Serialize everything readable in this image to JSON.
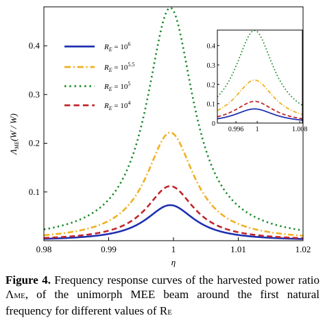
{
  "chart_data": {
    "type": "line",
    "xlabel": "η",
    "ylabel": "Λ_ME (W / W)",
    "xlim": [
      0.98,
      1.02
    ],
    "ylim": [
      0,
      0.48
    ],
    "x_ticks": [
      0.98,
      0.99,
      1,
      1.01,
      1.02
    ],
    "x_tick_labels": [
      "0.98",
      "0.99",
      "1",
      "1.01",
      "1.02"
    ],
    "y_ticks": [
      0.1,
      0.2,
      0.3,
      0.4
    ],
    "y_tick_labels": [
      "0.1",
      "0.2",
      "0.3",
      "0.4"
    ],
    "legend_position": "top-left",
    "series": [
      {
        "name": "R_E = 10^6",
        "label_base": "R",
        "label_sub": "E",
        "label_eq": " = 10",
        "label_sup": "6",
        "color": "#1f2fb0",
        "style": "solid",
        "peak": 0.073,
        "center": 0.9995,
        "gamma": 0.0046
      },
      {
        "name": "R_E = 10^5.5",
        "label_base": "R",
        "label_sub": "E",
        "label_eq": " = 10",
        "label_sup": "5.5",
        "color": "#f0b020",
        "style": "dashdot",
        "peak": 0.222,
        "center": 0.9995,
        "gamma": 0.0045
      },
      {
        "name": "R_E = 10^5",
        "label_base": "R",
        "label_sub": "E",
        "label_eq": " = 10",
        "label_sup": "5",
        "color": "#1a8a2a",
        "style": "dotted",
        "peak": 0.478,
        "center": 0.9995,
        "gamma": 0.0044
      },
      {
        "name": "R_E = 10^4",
        "label_base": "R",
        "label_sub": "E",
        "label_eq": " = 10",
        "label_sup": "4",
        "color": "#c0242a",
        "style": "dashed",
        "peak": 0.112,
        "center": 0.9995,
        "gamma": 0.0045
      }
    ],
    "inset": {
      "xlim": [
        0.9925,
        1.0085
      ],
      "ylim": [
        0,
        0.48
      ],
      "x_ticks": [
        0.996,
        1,
        1.008
      ],
      "x_tick_labels": [
        "0.996",
        "1",
        "1.008"
      ],
      "y_ticks": [
        0,
        0.1,
        0.2,
        0.3,
        0.4
      ],
      "y_tick_labels": [
        "0",
        "0.1",
        "0.2",
        "0.3",
        "0.4"
      ]
    }
  },
  "caption": {
    "label": "Figure 4.",
    "text_a": " Frequency response curves of the harvested power ratio Λ",
    "sub_me": "ME",
    "text_b": ", of the unimorph MEE beam around the first natural frequency for different values of R",
    "sub_e": "E"
  }
}
